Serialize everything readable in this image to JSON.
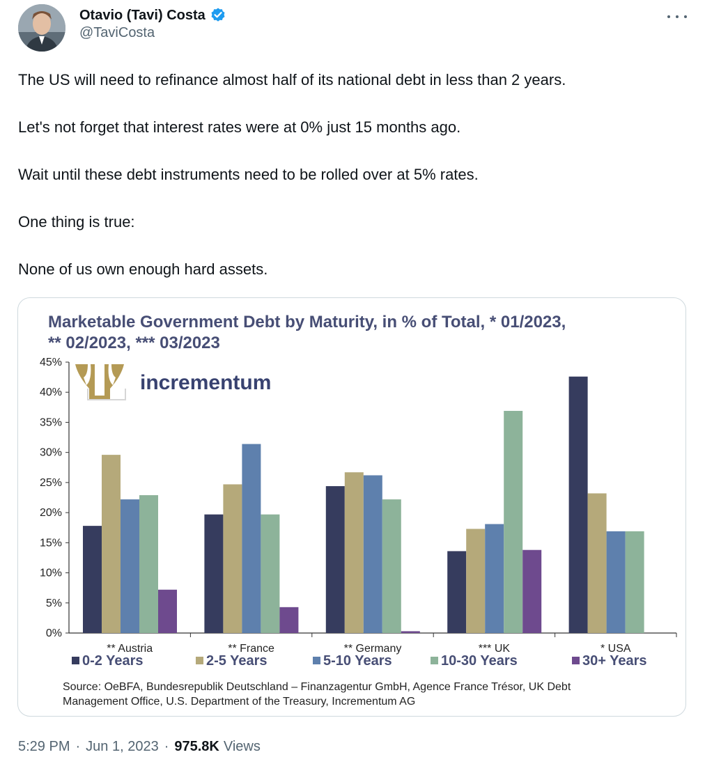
{
  "tweet": {
    "author": {
      "display_name": "Otavio (Tavi) Costa",
      "handle": "@TaviCosta",
      "verified": true,
      "badge_color": "#1d9bf0"
    },
    "text": [
      "The US will need to refinance almost half of its national debt in less than 2 years.",
      "Let's not forget that interest rates were at 0% just 15 months ago.",
      "Wait until these debt instruments need to be rolled over at 5% rates.",
      "One thing is true:",
      "None of us own enough hard assets."
    ],
    "time": "5:29 PM",
    "date": "Jun 1, 2023",
    "separator": "·",
    "views_count": "975.8K",
    "views_label": "Views"
  },
  "logo": {
    "text": "incrementum",
    "color": "#384270",
    "mark_color": "#b49a55"
  },
  "chart_data": {
    "type": "bar",
    "title_lines": [
      "Marketable Government Debt by Maturity, in % of Total, * 01/2023,",
      "** 02/2023, *** 03/2023"
    ],
    "categories": [
      "** Austria",
      "** France",
      "** Germany",
      "*** UK",
      "* USA"
    ],
    "series": [
      {
        "name": "0-2 Years",
        "color": "#363c5e",
        "values": [
          17.8,
          19.7,
          24.4,
          13.6,
          42.6
        ]
      },
      {
        "name": "2-5 Years",
        "color": "#b5a97a",
        "values": [
          29.6,
          24.7,
          26.7,
          17.3,
          23.2
        ]
      },
      {
        "name": "5-10 Years",
        "color": "#5e80ad",
        "values": [
          22.2,
          31.4,
          26.2,
          18.1,
          16.9
        ]
      },
      {
        "name": "10-30 Years",
        "color": "#8db39a",
        "values": [
          22.9,
          19.7,
          22.2,
          36.9,
          16.9
        ]
      },
      {
        "name": "30+ Years",
        "color": "#6e4a8e",
        "values": [
          7.2,
          4.3,
          0.3,
          13.8,
          null
        ]
      }
    ],
    "y_ticks": [
      "0%",
      "5%",
      "10%",
      "15%",
      "20%",
      "25%",
      "30%",
      "35%",
      "40%",
      "45%"
    ],
    "ylim": [
      0,
      45
    ],
    "title_color": "#474e75",
    "legend_position": "bottom",
    "source": [
      "Source: OeBFA, Bundesrepublik Deutschland – Finanzagentur GmbH, Agence France Trésor, UK Debt",
      "Management Office, U.S. Department of the Treasury, Incrementum AG"
    ]
  }
}
